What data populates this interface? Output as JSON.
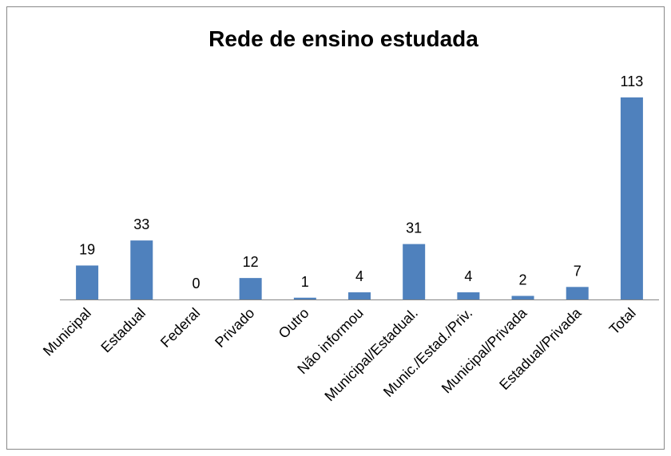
{
  "chart_data": {
    "type": "bar",
    "title": "Rede de ensino estudada",
    "categories": [
      "Municipal",
      "Estadual",
      "Federal",
      "Privado",
      "Outro",
      "Não informou",
      "Municipal/Estadual.",
      "Munic./Estad./Priv.",
      "Municipal/Privada",
      "Estadual/Privada",
      "Total"
    ],
    "values": [
      19,
      33,
      0,
      12,
      1,
      4,
      31,
      4,
      2,
      7,
      113
    ],
    "color": "#4f81bd",
    "grid": false,
    "data_labels": true
  }
}
